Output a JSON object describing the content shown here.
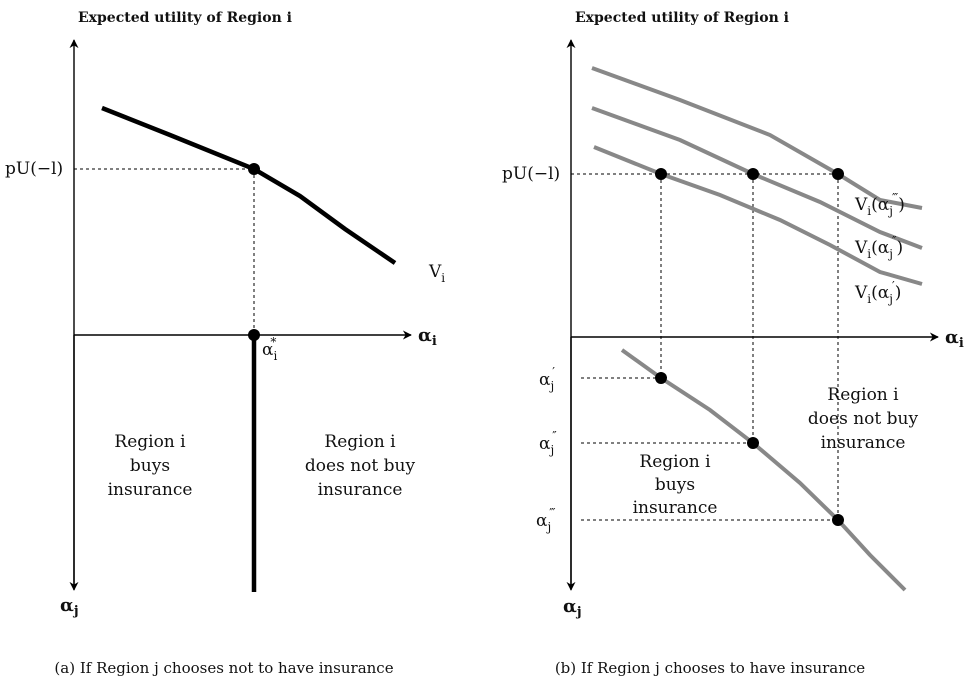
{
  "panel_a": {
    "y_axis_title": "Expected utility of Region i",
    "y_tick_pu": "pU(−l)",
    "curve_label": "V",
    "curve_label_sub": "i",
    "alpha_star": "α",
    "alpha_star_sub": "i",
    "alpha_star_sup": "*",
    "x_axis": "α",
    "x_axis_sub": "i",
    "y_axis_neg": "α",
    "y_axis_neg_sub": "j",
    "region_buys": [
      "Region i",
      "buys",
      "insurance"
    ],
    "region_not_buy": [
      "Region i",
      "does not buy",
      "insurance"
    ],
    "caption": "(a) If Region j chooses not to have insurance"
  },
  "panel_b": {
    "y_axis_title": "Expected utility of Region i",
    "y_tick_pu": "pU(−l)",
    "curve_labels": [
      {
        "base": "V",
        "sub": "i",
        "arg": "(α",
        "arg_sub": "j",
        "arg_prime": "‴",
        "close": ")"
      },
      {
        "base": "V",
        "sub": "i",
        "arg": "(α",
        "arg_sub": "j",
        "arg_prime": "″",
        "close": ")"
      },
      {
        "base": "V",
        "sub": "i",
        "arg": "(α",
        "arg_sub": "j",
        "arg_prime": "′",
        "close": ")"
      }
    ],
    "x_axis": "α",
    "x_axis_sub": "i",
    "y_axis_neg": "α",
    "y_axis_neg_sub": "j",
    "alpha_ticks": [
      {
        "base": "α",
        "sub": "j",
        "prime": "′"
      },
      {
        "base": "α",
        "sub": "j",
        "prime": "″"
      },
      {
        "base": "α",
        "sub": "j",
        "prime": "‴"
      }
    ],
    "region_buys": [
      "Region i",
      "buys",
      "insurance"
    ],
    "region_not_buy": [
      "Region i",
      "does not buy",
      "insurance"
    ],
    "caption": "(b) If Region j chooses to have insurance"
  }
}
